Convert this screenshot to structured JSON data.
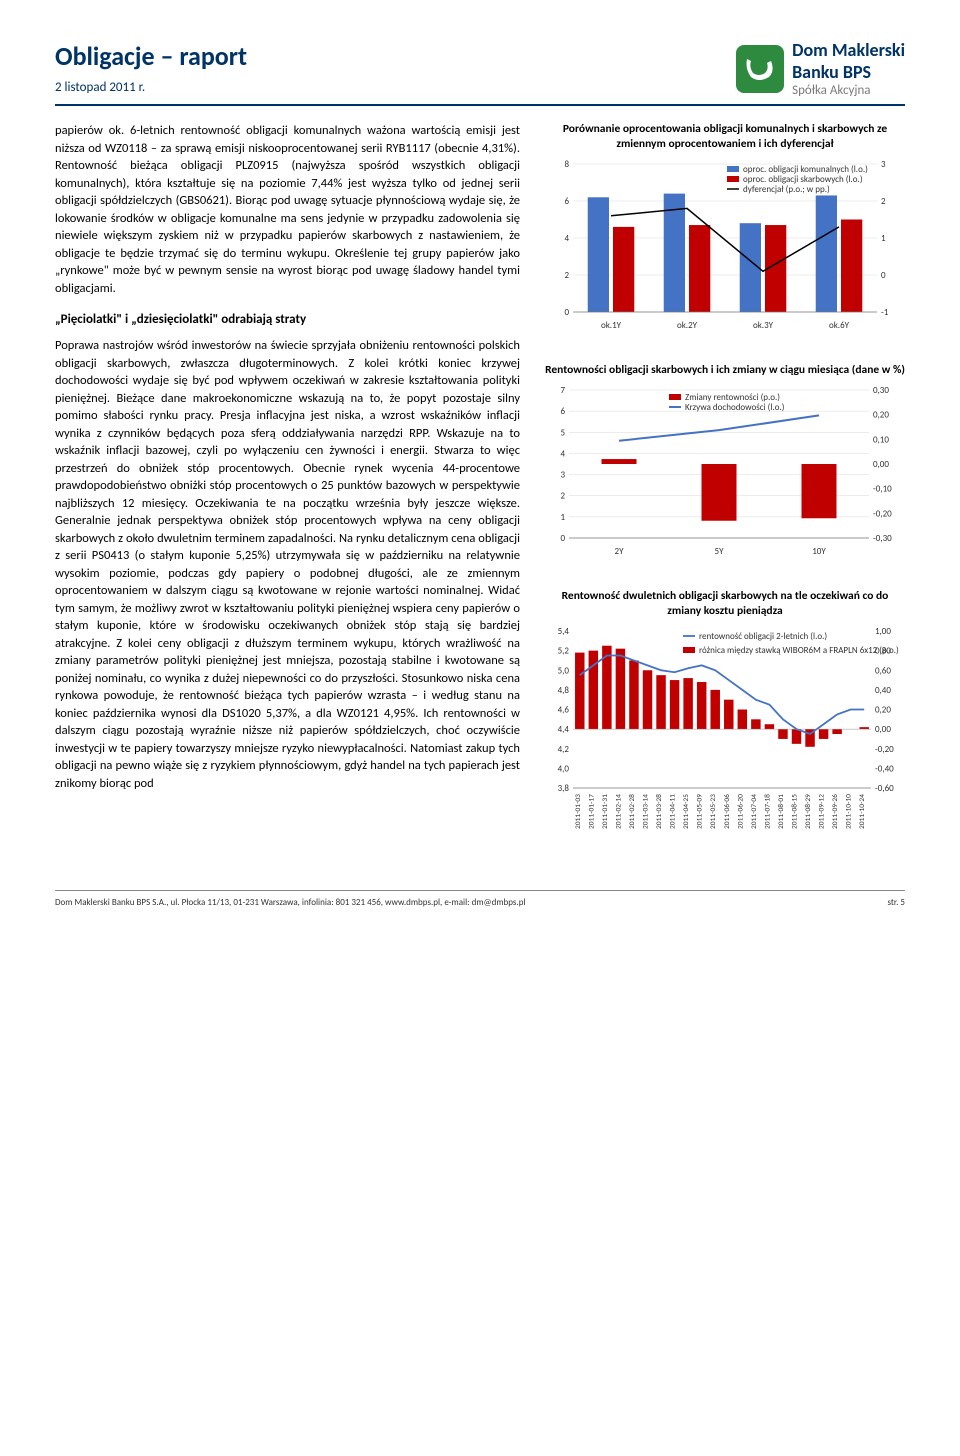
{
  "header": {
    "title": "Obligacje – raport",
    "date": "2 listopad 2011 r.",
    "logo_line1": "Dom Maklerski",
    "logo_line2": "Banku BPS",
    "logo_sub": "Spółka Akcyjna"
  },
  "body": {
    "para1": "papierów ok. 6-letnich rentowność obligacji komunalnych ważona wartością emisji jest niższa od WZ0118 – za sprawą emisji niskooprocentowanej serii RYB1117 (obecnie 4,31%). Rentowność bieżąca obligacji PLZ0915 (najwyższa spośród wszystkich obligacji komunalnych), która kształtuje się na poziomie 7,44% jest wyższa tylko od jednej serii obligacji spółdzielczych (GBS0621). Biorąc pod uwagę sytuacje płynnościową wydaje się, że lokowanie środków w obligacje komunalne ma sens jedynie w przypadku zadowolenia się niewiele większym zyskiem niż w przypadku papierów skarbowych z nastawieniem, że obligacje te będzie trzymać się do terminu wykupu. Określenie tej grupy papierów jako „rynkowe\" może być w pewnym sensie na wyrost biorąc pod uwagę śladowy handel tymi obligacjami.",
    "heading1": "„Pięciolatki\" i „dziesięciolatki\" odrabiają straty",
    "para2": "Poprawa nastrojów wśród inwestorów na świecie sprzyjała obniżeniu rentowności polskich obligacji skarbowych, zwłaszcza długoterminowych. Z kolei krótki koniec krzywej dochodowości wydaje się być pod wpływem oczekiwań w zakresie kształtowania polityki pieniężnej. Bieżące dane makroekonomiczne wskazują na to, że popyt pozostaje silny pomimo słabości rynku pracy. Presja inflacyjna jest niska, a wzrost wskaźników inflacji wynika z czynników będących poza sferą oddziaływania narzędzi RPP. Wskazuje na to wskaźnik inflacji bazowej, czyli po wyłączeniu cen żywności i energii. Stwarza to więc przestrzeń do obniżek stóp procentowych. Obecnie rynek wycenia 44-procentowe prawdopodobieństwo obniżki stóp procentowych o 25 punktów bazowych w perspektywie najbliższych 12 miesięcy. Oczekiwania te na początku września były jeszcze większe. Generalnie jednak perspektywa obniżek stóp procentowych wpływa na ceny obligacji skarbowych z około dwuletnim terminem zapadalności. Na rynku detalicznym cena obligacji z serii PS0413 (o stałym kuponie 5,25%) utrzymywała się w październiku na relatywnie wysokim poziomie, podczas gdy papiery o podobnej długości, ale ze zmiennym oprocentowaniem w dalszym ciągu są kwotowane w rejonie wartości nominalnej. Widać tym samym, że możliwy zwrot w kształtowaniu polityki pieniężnej wspiera ceny papierów o stałym kuponie, które w środowisku oczekiwanych obniżek stóp stają się bardziej atrakcyjne. Z kolei ceny obligacji z dłuższym terminem wykupu, których wrażliwość na zmiany parametrów polityki pieniężnej jest mniejsza, pozostają stabilne i kwotowane są poniżej nominału, co wynika z dużej niepewności co do przyszłości. Stosunkowo niska cena rynkowa powoduje, że rentowność bieżąca tych papierów wzrasta – i według stanu na koniec października wynosi dla DS1020 5,37%, a dla WZ0121 4,95%. Ich rentowności w dalszym ciągu pozostają wyraźnie niższe niż papierów spółdzielczych, choć oczywiście inwestycji w te papiery towarzyszy mniejsze ryzyko niewypłacalności. Natomiast zakup tych obligacji na pewno wiąże się z ryzykiem płynnościowym, gdyż handel na tych papierach jest znikomy biorąc pod"
  },
  "chart1": {
    "type": "bar+line",
    "title": "Porównanie oprocentowania obligacji komunalnych i skarbowych ze zmiennym oprocentowaniem i ich dyferencjał",
    "categories": [
      "ok.1Y",
      "ok.2Y",
      "ok.3Y",
      "ok.6Y"
    ],
    "bars1": [
      6.2,
      6.4,
      4.8,
      6.3
    ],
    "bars2": [
      4.6,
      4.7,
      4.7,
      5.0
    ],
    "line": [
      1.6,
      1.8,
      0.1,
      1.3
    ],
    "bar1_color": "#4472c4",
    "bar2_color": "#c00000",
    "line_color": "#000000",
    "y1_lim": [
      0,
      8
    ],
    "y1_step": 2,
    "y2_lim": [
      -1,
      3
    ],
    "y2_step": 1,
    "legend": {
      "bars1": "oproc. obligacji komunalnych (l.o.)",
      "bars2": "oproc. obligacji skarbowych (l.o.)",
      "line": "dyferencjał (p.o.; w pp.)"
    },
    "background": "#ffffff",
    "grid_color": "#d9d9d9"
  },
  "chart2": {
    "type": "bar+line",
    "title": "Rentowności obligacji skarbowych i ich zmiany w ciągu miesiąca (dane w %)",
    "categories": [
      "2Y",
      "5Y",
      "10Y"
    ],
    "bars": [
      0.02,
      -0.23,
      -0.22
    ],
    "line": [
      4.6,
      5.1,
      5.8
    ],
    "bar_color": "#c00000",
    "line_color": "#4472c4",
    "y1_lim": [
      0,
      7
    ],
    "y1_step": 1,
    "y2_lim": [
      -0.3,
      0.3
    ],
    "y2_step": 0.1,
    "legend": {
      "bars": "Zmiany rentowności (p.o.)",
      "line": "Krzywa dochodowości (l.o.)"
    },
    "background": "#ffffff",
    "grid_color": "#d9d9d9"
  },
  "chart3": {
    "type": "line+bars-dense",
    "title": "Rentowność dwuletnich obligacji skarbowych na tle oczekiwań co do zmiany kosztu pieniądza",
    "x_labels": [
      "2011-01-03",
      "2011-01-17",
      "2011-01-31",
      "2011-02-14",
      "2011-02-28",
      "2011-03-14",
      "2011-03-28",
      "2011-04-11",
      "2011-04-25",
      "2011-05-09",
      "2011-05-23",
      "2011-06-06",
      "2011-06-20",
      "2011-07-04",
      "2011-07-18",
      "2011-08-01",
      "2011-08-15",
      "2011-08-29",
      "2011-09-12",
      "2011-09-26",
      "2011-10-10",
      "2011-10-24"
    ],
    "line": [
      4.95,
      5.05,
      5.15,
      5.15,
      5.1,
      5.05,
      5.0,
      4.98,
      5.02,
      5.05,
      5.0,
      4.9,
      4.8,
      4.7,
      4.65,
      4.5,
      4.4,
      4.35,
      4.45,
      4.55,
      4.6,
      4.6
    ],
    "bars": [
      0.78,
      0.8,
      0.85,
      0.82,
      0.7,
      0.6,
      0.55,
      0.5,
      0.52,
      0.48,
      0.4,
      0.3,
      0.2,
      0.1,
      0.05,
      -0.1,
      -0.15,
      -0.18,
      -0.1,
      -0.05,
      0.0,
      0.02
    ],
    "line_color": "#4472c4",
    "bar_color": "#c00000",
    "y1_lim": [
      3.8,
      5.4
    ],
    "y1_step": 0.2,
    "y2_lim": [
      -0.6,
      1.0
    ],
    "y2_step": 0.2,
    "legend": {
      "line": "rentowność obligacji 2-letnich (l.o.)",
      "bars": "różnica między stawką WIBOR6M a FRAPLN 6x12 (p.o.)"
    },
    "background": "#ffffff"
  },
  "footer": {
    "left": "Dom Maklerski Banku BPS S.A., ul. Płocka 11/13, 01-231 Warszawa, infolinia: 801 321 456, www.dmbps.pl, e-mail: dm@dmbps.pl",
    "right": "str. 5"
  }
}
